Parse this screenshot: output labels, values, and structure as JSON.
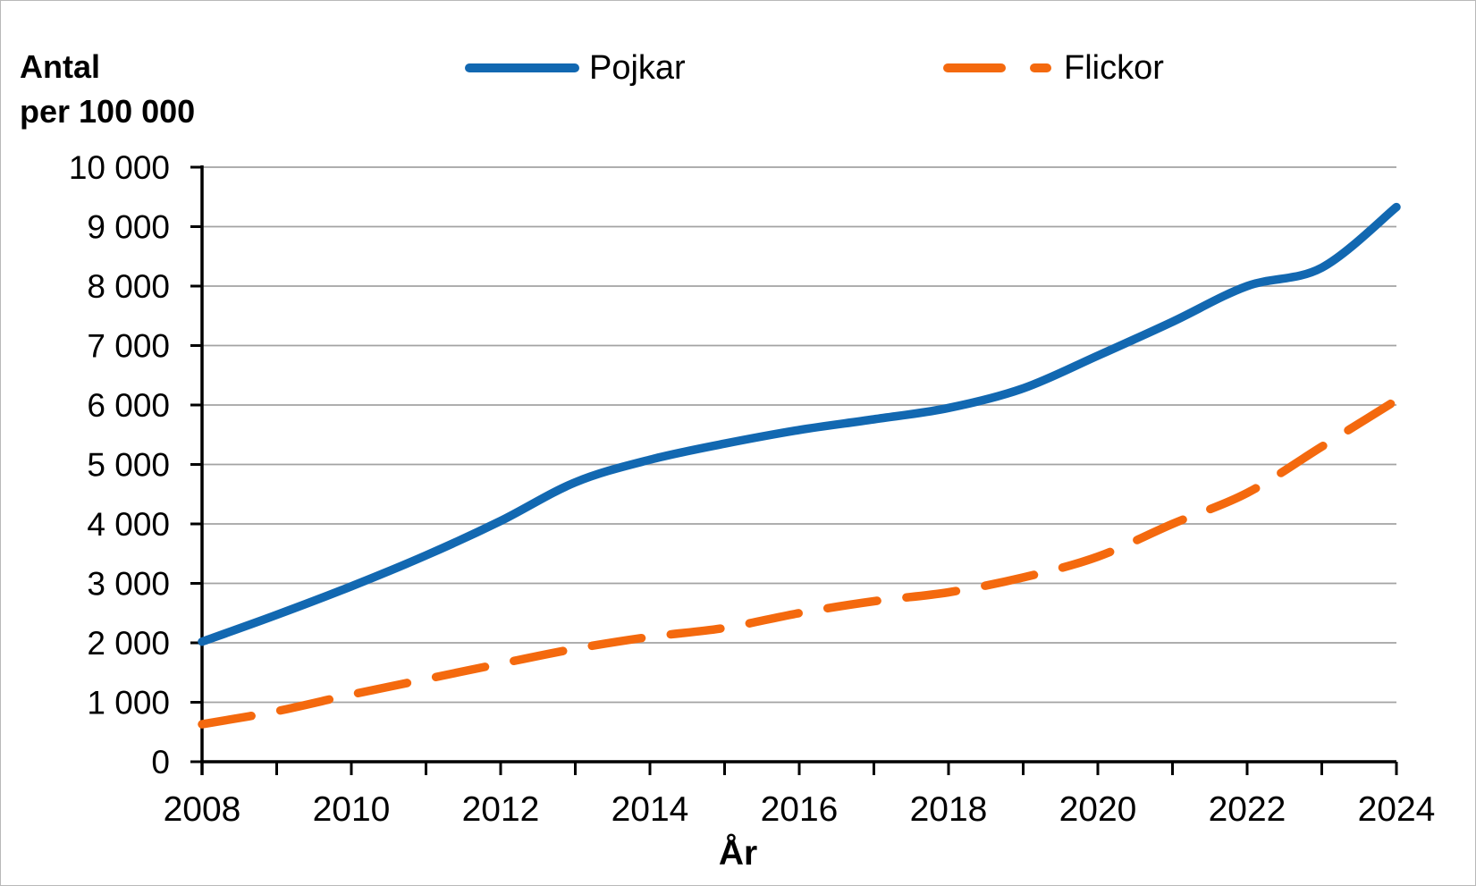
{
  "chart_data": {
    "type": "line",
    "ylabel_lines": [
      "Antal",
      "per 100 000"
    ],
    "xlabel": "År",
    "x": [
      2008,
      2009,
      2010,
      2011,
      2012,
      2013,
      2014,
      2015,
      2016,
      2017,
      2018,
      2019,
      2020,
      2021,
      2022,
      2023,
      2024
    ],
    "series": [
      {
        "name": "Pojkar",
        "style": "solid",
        "color": "#1268B1",
        "values": [
          2020,
          2470,
          2950,
          3470,
          4050,
          4700,
          5080,
          5350,
          5580,
          5760,
          5950,
          6280,
          6830,
          7400,
          8000,
          8310,
          9330
        ]
      },
      {
        "name": "Flickor",
        "style": "dashed",
        "color": "#F4690E",
        "values": [
          630,
          850,
          1130,
          1390,
          1650,
          1900,
          2100,
          2250,
          2500,
          2700,
          2850,
          3100,
          3450,
          4000,
          4520,
          5300,
          6080
        ]
      }
    ],
    "ylim": [
      0,
      10000
    ],
    "ytick_step": 1000,
    "ytick_labels": [
      "0",
      "1 000",
      "2 000",
      "3 000",
      "4 000",
      "5 000",
      "6 000",
      "7 000",
      "8 000",
      "9 000",
      "10 000"
    ],
    "xtick_label_years": [
      "2008",
      "2010",
      "2012",
      "2014",
      "2016",
      "2018",
      "2020",
      "2022",
      "2024"
    ],
    "grid": "horizontal",
    "grid_color": "#A3A3A3",
    "axis_color": "#000000",
    "legend_position": "top"
  }
}
